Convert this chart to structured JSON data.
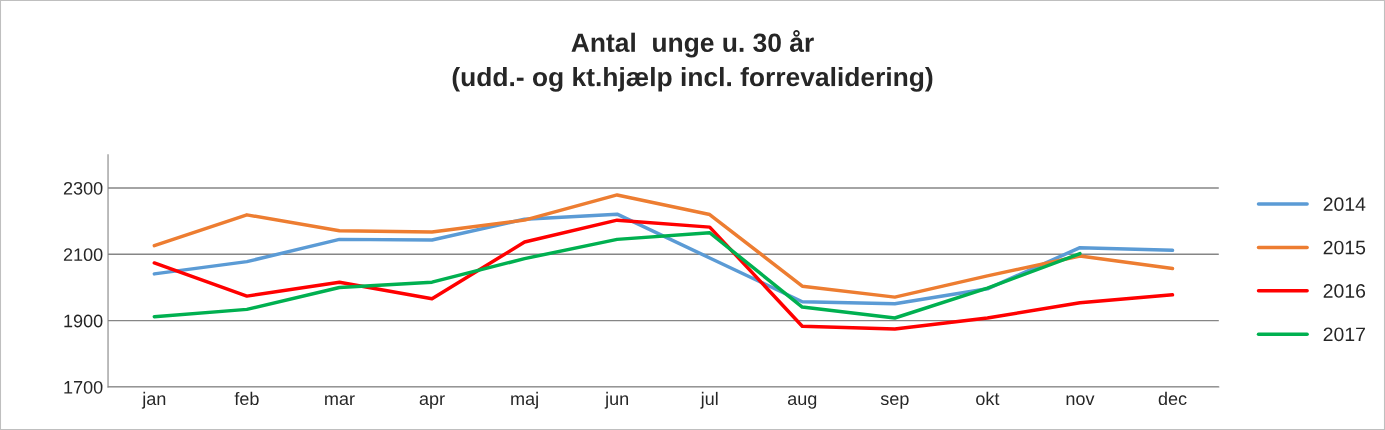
{
  "chart_data": {
    "type": "line",
    "title": "Antal  unge u. 30 år\n(udd.- og kt.hjælp incl. forrevalidering)",
    "categories": [
      "jan",
      "feb",
      "mar",
      "apr",
      "maj",
      "jun",
      "jul",
      "aug",
      "sep",
      "okt",
      "nov",
      "dec"
    ],
    "series": [
      {
        "name": "2014",
        "color": "#5b9bd5",
        "values": [
          2041,
          2078,
          2145,
          2143,
          2206,
          2221,
          2089,
          1957,
          1951,
          1996,
          2120,
          2112
        ]
      },
      {
        "name": "2015",
        "color": "#ed7d31",
        "values": [
          2126,
          2219,
          2171,
          2167,
          2203,
          2279,
          2220,
          2004,
          1971,
          2035,
          2095,
          2057
        ]
      },
      {
        "name": "2016",
        "color": "#ff0000",
        "values": [
          2074,
          1974,
          2016,
          1966,
          2137,
          2203,
          2182,
          1883,
          1875,
          1908,
          1954,
          1978
        ]
      },
      {
        "name": "2017",
        "color": "#00b050",
        "values": [
          1912,
          1934,
          2000,
          2016,
          2087,
          2145,
          2165,
          1941,
          1908,
          1998,
          2102,
          null
        ]
      }
    ],
    "ylim": [
      1700,
      2400
    ],
    "yticks": [
      1700,
      1900,
      2100,
      2300
    ],
    "grid": "y",
    "legend": "right",
    "marker": "none",
    "line_style": "solid"
  }
}
